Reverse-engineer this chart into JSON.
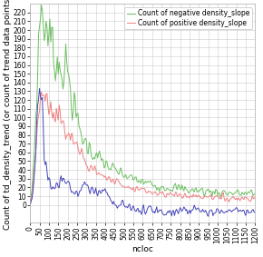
{
  "xlabel": "ncloc",
  "ylabel": "Count of td_density_trend (or count of trend data points)",
  "xlim": [
    0,
    1200
  ],
  "ylim": [
    -20,
    230
  ],
  "yticks": [
    0,
    10,
    20,
    30,
    40,
    50,
    60,
    70,
    80,
    90,
    100,
    110,
    120,
    130,
    140,
    150,
    160,
    170,
    180,
    190,
    200,
    210,
    220
  ],
  "xticks": [
    0,
    50,
    100,
    150,
    200,
    250,
    300,
    350,
    400,
    450,
    500,
    550,
    600,
    650,
    700,
    750,
    800,
    850,
    900,
    950,
    1000,
    1050,
    1100,
    1150,
    1200
  ],
  "legend_positive": "Count of positive density_slope",
  "legend_negative": "Count of negative density_slope",
  "color_positive": "#f08080",
  "color_negative": "#6abf5e",
  "color_delta": "#4444bb",
  "grid_color": "#cccccc",
  "background_color": "#ffffff",
  "font_size_tick": 5.5,
  "font_size_label": 6.5,
  "font_size_legend": 5.5,
  "figwidth": 2.9,
  "figheight": 2.83,
  "dpi": 100
}
